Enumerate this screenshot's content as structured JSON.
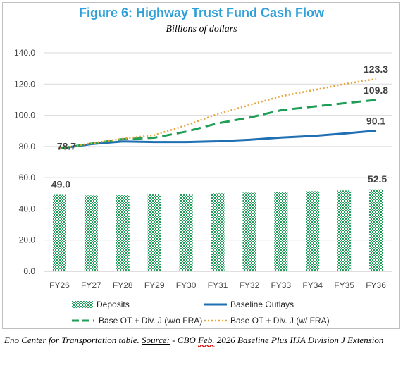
{
  "chart_data": {
    "type": "bar",
    "title": "Figure 6: Highway Trust Fund Cash Flow",
    "subtitle": "Billions of dollars",
    "categories": [
      "FY26",
      "FY27",
      "FY28",
      "FY29",
      "FY30",
      "FY31",
      "FY32",
      "FY33",
      "FY34",
      "FY35",
      "FY36"
    ],
    "ylim": [
      0,
      140
    ],
    "yticks": [
      "0.0",
      "20.0",
      "40.0",
      "60.0",
      "80.0",
      "100.0",
      "120.0",
      "140.0"
    ],
    "ytick_values": [
      0,
      20,
      40,
      60,
      80,
      100,
      120,
      140
    ],
    "grid": true,
    "legend_position": "bottom",
    "series": [
      {
        "name": "Deposits",
        "type": "bar",
        "color": "#1e9e57",
        "values": [
          49.0,
          48.6,
          48.7,
          49.2,
          49.6,
          50.0,
          50.4,
          50.8,
          51.3,
          51.8,
          52.5
        ]
      },
      {
        "name": "Baseline Outlays",
        "type": "line",
        "color": "#1f6fb2",
        "values": [
          78.7,
          81.5,
          83.2,
          82.8,
          82.8,
          83.3,
          84.3,
          85.7,
          86.7,
          88.3,
          90.1
        ]
      },
      {
        "name": "Base OT + Div. J (w/o FRA)",
        "type": "line-dashed",
        "color": "#1e9e57",
        "values": [
          78.7,
          81.8,
          84.7,
          85.6,
          89.5,
          94.8,
          98.5,
          103.2,
          105.5,
          107.7,
          109.8
        ]
      },
      {
        "name": "Base OT + Div. J (w/ FRA)",
        "type": "line-dotted",
        "color": "#e8a33c",
        "values": [
          78.7,
          82.0,
          85.0,
          87.3,
          93.5,
          100.8,
          106.5,
          112.2,
          116.0,
          120.0,
          123.3
        ]
      }
    ],
    "data_labels": [
      {
        "text": "78.7",
        "series": 1,
        "index": 0
      },
      {
        "text": "49.0",
        "series": 0,
        "index": 0
      },
      {
        "text": "52.5",
        "series": 0,
        "index": 10
      },
      {
        "text": "90.1",
        "series": 1,
        "index": 10
      },
      {
        "text": "109.8",
        "series": 2,
        "index": 10
      },
      {
        "text": "123.3",
        "series": 3,
        "index": 10
      }
    ]
  },
  "legend": {
    "deposits": "Deposits",
    "baseline": "Baseline Outlays",
    "wofra": "Base OT + Div. J (w/o FRA)",
    "wfra": "Base OT + Div. J (w/ FRA)"
  },
  "source": {
    "lead": "Eno Center for Transportation table. ",
    "label": "Source:",
    "dash": " - CBO ",
    "feb": "Feb.",
    "rest": " 2026 Baseline Plus IIJA Division J Extension"
  }
}
